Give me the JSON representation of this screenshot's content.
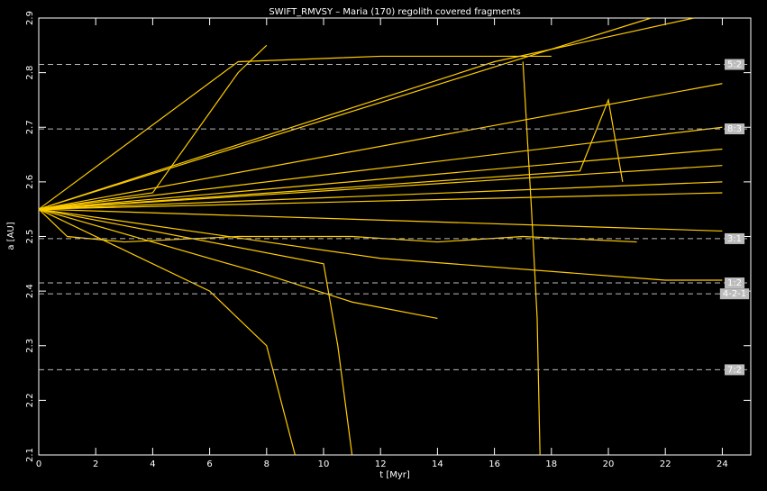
{
  "chart_data": {
    "type": "line",
    "title": "SWIFT_RMVSY – Maria (170) regolith covered fragments",
    "xlabel": "t [Myr]",
    "ylabel": "a [AU]",
    "color": "#ffcc00",
    "xlim": [
      0,
      25
    ],
    "xticks": [
      0,
      2,
      4,
      6,
      8,
      10,
      12,
      14,
      16,
      18,
      20,
      22,
      24
    ],
    "ylim": [
      2.1,
      2.9
    ],
    "yticks": [
      2.1,
      2.2,
      2.3,
      2.4,
      2.5,
      2.6,
      2.7,
      2.8,
      2.9
    ],
    "resonances": [
      {
        "label": "5:2",
        "a": 2.815
      },
      {
        "label": "8:3",
        "a": 2.697
      },
      {
        "label": "3:1",
        "a": 2.496
      },
      {
        "label": "1:2",
        "a": 2.415
      },
      {
        "label": "4-2-1",
        "a": 2.395
      },
      {
        "label": "7:2",
        "a": 2.256
      }
    ],
    "series": [
      {
        "x": [
          0,
          21.5
        ],
        "values": [
          2.55,
          2.9
        ]
      },
      {
        "x": [
          0,
          24
        ],
        "values": [
          2.55,
          2.78
        ]
      },
      {
        "x": [
          0,
          24
        ],
        "values": [
          2.55,
          2.7
        ]
      },
      {
        "x": [
          0,
          24
        ],
        "values": [
          2.55,
          2.66
        ]
      },
      {
        "x": [
          0,
          24
        ],
        "values": [
          2.55,
          2.63
        ]
      },
      {
        "x": [
          0,
          24
        ],
        "values": [
          2.55,
          2.6
        ]
      },
      {
        "x": [
          0,
          24
        ],
        "values": [
          2.55,
          2.58
        ]
      },
      {
        "x": [
          0,
          24
        ],
        "values": [
          2.55,
          2.51
        ]
      },
      {
        "x": [
          0,
          1,
          3,
          7,
          11,
          14,
          17,
          21
        ],
        "values": [
          2.55,
          2.5,
          2.49,
          2.5,
          2.5,
          2.49,
          2.5,
          2.49
        ]
      },
      {
        "x": [
          0,
          8,
          11,
          14
        ],
        "values": [
          2.55,
          2.43,
          2.38,
          2.35
        ]
      },
      {
        "x": [
          0,
          6,
          8,
          9
        ],
        "values": [
          2.55,
          2.4,
          2.3,
          2.1
        ]
      },
      {
        "x": [
          0,
          12,
          22,
          24
        ],
        "values": [
          2.55,
          2.46,
          2.42,
          2.42
        ]
      },
      {
        "x": [
          0,
          4,
          7,
          8
        ],
        "values": [
          2.55,
          2.58,
          2.8,
          2.85
        ]
      },
      {
        "x": [
          17,
          17.3,
          17.5,
          17.6
        ],
        "values": [
          2.82,
          2.55,
          2.35,
          2.1
        ]
      },
      {
        "x": [
          0,
          7,
          12,
          18
        ],
        "values": [
          2.55,
          2.82,
          2.83,
          2.83
        ]
      },
      {
        "x": [
          0,
          16,
          23
        ],
        "values": [
          2.55,
          2.82,
          2.9
        ]
      },
      {
        "x": [
          0,
          10,
          10.5,
          11
        ],
        "values": [
          2.55,
          2.45,
          2.3,
          2.1
        ]
      },
      {
        "x": [
          0,
          19,
          20,
          20.5
        ],
        "values": [
          2.55,
          2.62,
          2.75,
          2.6
        ]
      }
    ]
  }
}
